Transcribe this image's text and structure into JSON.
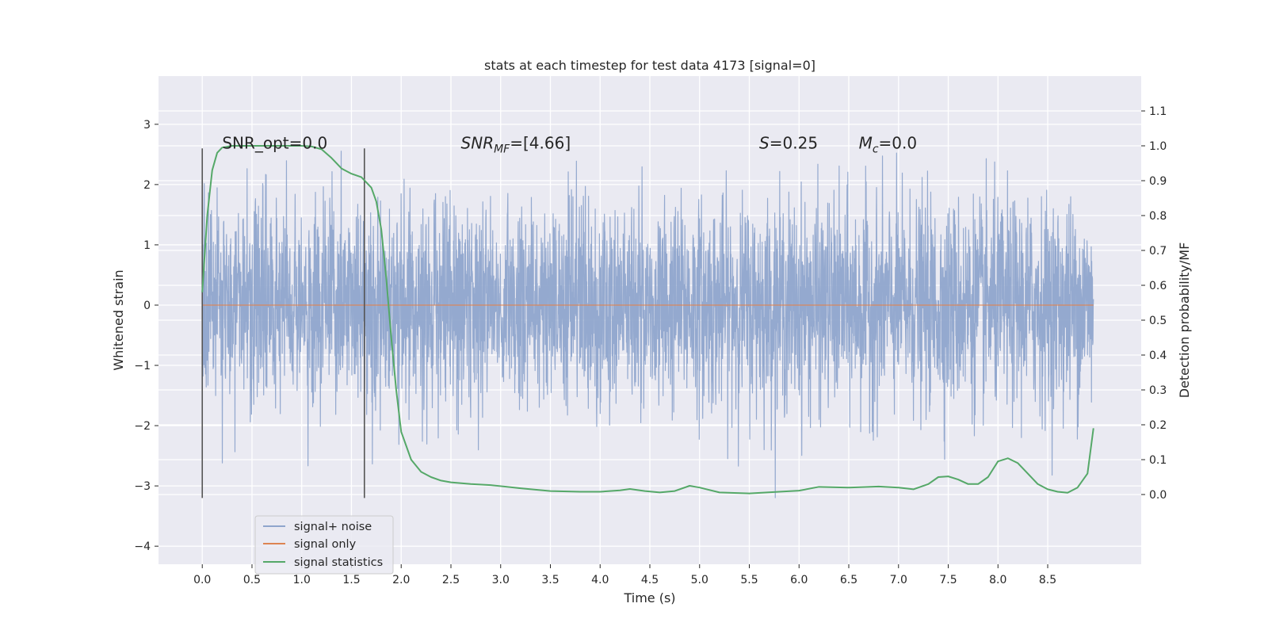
{
  "chart_data": {
    "type": "line",
    "title": "stats at each timestep for test data 4173 [signal=0]",
    "xlabel": "Time (s)",
    "ylabel": "Whitened strain",
    "ylabel_right": "Detection probability/MF",
    "xlim": [
      -0.44,
      9.44
    ],
    "ylim": [
      -4.3,
      3.8
    ],
    "ylim_right": [
      -0.2,
      1.2
    ],
    "x_ticks": [
      0.0,
      0.5,
      1.0,
      1.5,
      2.0,
      2.5,
      3.0,
      3.5,
      4.0,
      4.5,
      5.0,
      5.5,
      6.0,
      6.5,
      7.0,
      7.5,
      8.0,
      8.5
    ],
    "x_tick_labels": [
      "0.0",
      "0.5",
      "1.0",
      "1.5",
      "2.0",
      "2.5",
      "3.0",
      "3.5",
      "4.0",
      "4.5",
      "5.0",
      "5.5",
      "6.0",
      "6.5",
      "7.0",
      "7.5",
      "8.0",
      "8.5"
    ],
    "y_ticks": [
      -4,
      -3,
      -2,
      -1,
      0,
      1,
      2,
      3
    ],
    "y_tick_labels": [
      "−4",
      "−3",
      "−2",
      "−1",
      "0",
      "1",
      "2",
      "3"
    ],
    "y_ticks_right": [
      0.0,
      0.1,
      0.2,
      0.3,
      0.4,
      0.5,
      0.6,
      0.7,
      0.8,
      0.9,
      1.0,
      1.1
    ],
    "y_tick_labels_right": [
      "0.0",
      "0.1",
      "0.2",
      "0.3",
      "0.4",
      "0.5",
      "0.6",
      "0.7",
      "0.8",
      "0.9",
      "1.0",
      "1.1"
    ],
    "grid": true,
    "legend_position": "lower-left",
    "series": [
      {
        "name": "signal+ noise",
        "color": "#8fa5cc",
        "kind": "noise",
        "x_range": [
          0.0,
          8.96
        ],
        "sigma": 0.85,
        "y_min_observed": -4.02,
        "y_max_observed": 3.4
      },
      {
        "name": "signal only",
        "color": "#dd8452",
        "kind": "flat",
        "x": [
          0.0,
          8.96
        ],
        "y": [
          0.0,
          0.0
        ]
      },
      {
        "name": "signal statistics",
        "color": "#55a868",
        "axis": "right",
        "x": [
          0.0,
          0.05,
          0.1,
          0.15,
          0.2,
          0.3,
          0.5,
          0.8,
          1.0,
          1.1,
          1.2,
          1.3,
          1.4,
          1.5,
          1.6,
          1.7,
          1.75,
          1.8,
          1.85,
          1.9,
          1.95,
          2.0,
          2.1,
          2.2,
          2.3,
          2.4,
          2.5,
          2.7,
          2.9,
          3.0,
          3.2,
          3.5,
          3.8,
          4.0,
          4.2,
          4.3,
          4.45,
          4.6,
          4.75,
          4.9,
          5.0,
          5.2,
          5.5,
          5.8,
          6.0,
          6.2,
          6.5,
          6.8,
          7.0,
          7.15,
          7.3,
          7.4,
          7.5,
          7.6,
          7.7,
          7.8,
          7.9,
          8.0,
          8.1,
          8.2,
          8.3,
          8.4,
          8.5,
          8.6,
          8.7,
          8.8,
          8.9,
          8.96
        ],
        "y": [
          0.58,
          0.8,
          0.93,
          0.98,
          0.995,
          1.0,
          1.0,
          1.0,
          1.0,
          0.998,
          0.99,
          0.965,
          0.935,
          0.92,
          0.91,
          0.88,
          0.84,
          0.76,
          0.62,
          0.45,
          0.3,
          0.18,
          0.1,
          0.065,
          0.05,
          0.04,
          0.035,
          0.03,
          0.027,
          0.024,
          0.018,
          0.01,
          0.008,
          0.008,
          0.012,
          0.016,
          0.01,
          0.006,
          0.01,
          0.025,
          0.02,
          0.006,
          0.003,
          0.008,
          0.011,
          0.022,
          0.02,
          0.023,
          0.02,
          0.015,
          0.03,
          0.05,
          0.052,
          0.043,
          0.03,
          0.03,
          0.05,
          0.095,
          0.104,
          0.09,
          0.06,
          0.03,
          0.015,
          0.008,
          0.005,
          0.02,
          0.06,
          0.19
        ]
      }
    ],
    "vertical_lines": [
      {
        "x": 0.0,
        "ymin": -3.2,
        "ymax": 2.6,
        "color": "#555555"
      },
      {
        "x": 1.63,
        "ymin": -3.2,
        "ymax": 2.6,
        "color": "#555555"
      }
    ],
    "annotations": [
      {
        "id": "snr-opt",
        "label": "SNR_opt=0.0",
        "x": 0.2,
        "y": 2.6
      },
      {
        "id": "snr-mf",
        "base": "SNR",
        "sub": "MF",
        "label": "=[4.66]",
        "x": 2.6,
        "y": 2.6
      },
      {
        "id": "s",
        "base": "S",
        "label": "=0.25",
        "x": 5.6,
        "y": 2.6
      },
      {
        "id": "mc",
        "base": "M",
        "sub": "c",
        "label": "=0.0",
        "x": 6.6,
        "y": 2.6
      }
    ]
  }
}
